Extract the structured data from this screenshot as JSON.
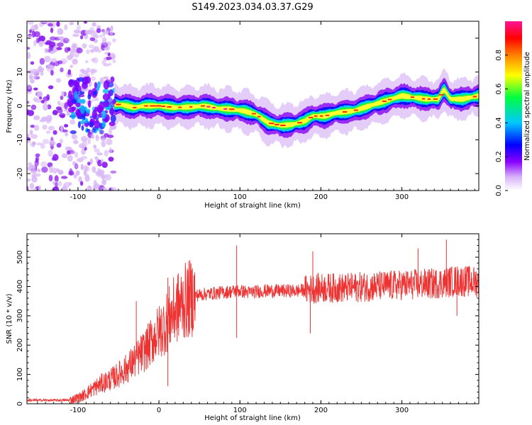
{
  "title": "S149.2023.034.03.37.G29",
  "colors": {
    "snr_line": "#ee3333",
    "axes": "#000000",
    "background": "#ffffff"
  },
  "chart_data": [
    {
      "type": "heatmap",
      "name": "spectrogram",
      "xlabel": "Height of straight line (km)",
      "ylabel": "Frequency (Hz)",
      "xlim": [
        -163,
        395
      ],
      "ylim": [
        -25,
        25
      ],
      "xticks": [
        -100,
        0,
        100,
        200,
        300
      ],
      "xtick_labels": [
        "-100",
        "0",
        "100",
        "200",
        "300"
      ],
      "yticks": [
        -20,
        -10,
        0,
        10,
        20
      ],
      "ytick_labels": [
        "-20",
        "-10",
        "0",
        "10",
        "20"
      ],
      "colorbar": {
        "label": "Normalized spectral amplitude",
        "range": [
          0,
          1
        ],
        "ticks": [
          0.0,
          0.2,
          0.4,
          0.6,
          0.8
        ],
        "tick_labels": [
          "0.0",
          "0.2",
          "0.4",
          "0.6",
          "0.8"
        ],
        "colormap": [
          "#ffffff",
          "#d8b4f8",
          "#8a00ff",
          "#0000ff",
          "#00c8ff",
          "#00ff40",
          "#ffff00",
          "#ff8000",
          "#ff0000",
          "#ff1493"
        ]
      },
      "ridge": {
        "x": [
          -55,
          -45,
          -30,
          -20,
          0,
          20,
          40,
          55,
          75,
          90,
          105,
          120,
          135,
          150,
          165,
          180,
          190,
          205,
          220,
          240,
          260,
          280,
          300,
          330,
          345,
          352,
          360,
          375,
          395
        ],
        "y": [
          0.5,
          0.3,
          -0.5,
          0,
          0,
          -0.5,
          -0.3,
          0,
          -0.8,
          -1,
          -1.5,
          -2.5,
          -5,
          -5.8,
          -5.5,
          -4.5,
          -3,
          -3,
          -2,
          -1.5,
          0,
          1.5,
          3,
          2,
          2,
          5,
          2,
          2,
          3
        ]
      },
      "noise_region": {
        "x_range": [
          -163,
          -55
        ],
        "y_range": [
          -25,
          25
        ]
      }
    },
    {
      "type": "line",
      "name": "snr",
      "xlabel": "Height of straight line (km)",
      "ylabel": "SNR (10 * v/v)",
      "xlim": [
        -163,
        395
      ],
      "ylim": [
        0,
        580
      ],
      "xticks": [
        -100,
        0,
        100,
        200,
        300
      ],
      "xtick_labels": [
        "-100",
        "0",
        "100",
        "200",
        "300"
      ],
      "yticks": [
        0,
        100,
        200,
        300,
        400,
        500
      ],
      "ytick_labels": [
        "0",
        "100",
        "200",
        "300",
        "400",
        "500"
      ],
      "envelope": {
        "x": [
          -163,
          -110,
          -95,
          -85,
          -70,
          -55,
          -40,
          -25,
          -15,
          -5,
          5,
          12,
          20,
          30,
          45,
          60,
          80,
          95,
          100,
          110,
          130,
          150,
          170,
          185,
          200,
          230,
          260,
          300,
          340,
          370,
          395
        ],
        "y": [
          12,
          12,
          25,
          45,
          70,
          90,
          120,
          160,
          190,
          230,
          260,
          290,
          320,
          345,
          370,
          375,
          380,
          385,
          385,
          380,
          385,
          385,
          385,
          390,
          395,
          395,
          400,
          405,
          410,
          420,
          415
        ]
      },
      "spikes": [
        {
          "x": 96,
          "y": 540
        },
        {
          "x": 190,
          "y": 520
        },
        {
          "x": 355,
          "y": 560
        },
        {
          "x": 11,
          "y": 430
        },
        {
          "x": 11,
          "y": 60
        },
        {
          "x": -28,
          "y": 350
        },
        {
          "x": 96,
          "y": 225
        },
        {
          "x": 187,
          "y": 240
        },
        {
          "x": 368,
          "y": 300
        },
        {
          "x": 320,
          "y": 530
        }
      ]
    }
  ]
}
